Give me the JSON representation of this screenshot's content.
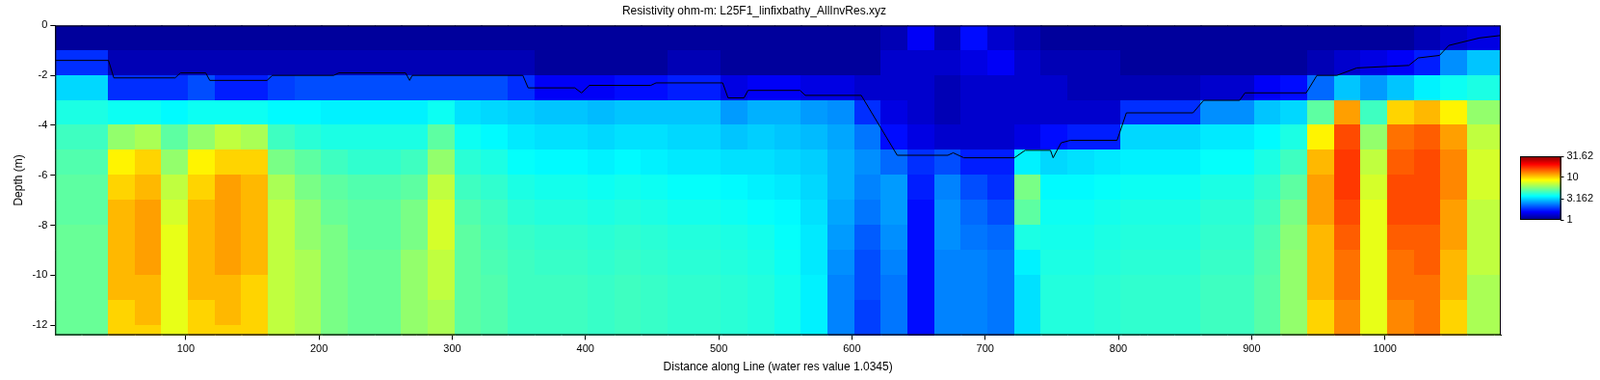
{
  "chart_data": {
    "type": "heatmap",
    "title": "Resistivity ohm-m: L25F1_linfixbathy_AllInvRes.xyz",
    "x_label": "Distance along Line (water res value 1.0345)",
    "y_label": "Depth (m)",
    "xlim": [
      2,
      1087
    ],
    "xticks": [
      100,
      200,
      300,
      400,
      500,
      600,
      700,
      800,
      900,
      1000
    ],
    "ylim": [
      -12.4,
      0
    ],
    "yticks": [
      -12,
      -10,
      -8,
      -6,
      -4,
      -2,
      0
    ],
    "grid": false,
    "x": [
      12,
      32,
      52,
      72,
      92,
      112,
      132,
      152,
      172,
      192,
      212,
      232,
      252,
      272,
      292,
      312,
      332,
      352,
      372,
      392,
      412,
      432,
      452,
      472,
      492,
      512,
      532,
      552,
      572,
      592,
      612,
      632,
      652,
      672,
      692,
      712,
      732,
      752,
      772,
      792,
      812,
      832,
      852,
      872,
      892,
      912,
      932,
      952,
      972,
      992,
      1012,
      1032,
      1052,
      1072,
      1092
    ],
    "y": [
      -0.5,
      -1.5,
      -2.5,
      -3.5,
      -4.5,
      -5.5,
      -6.5,
      -7.5,
      -8.5,
      -9.5,
      -10.5,
      -11.5,
      -12.5
    ],
    "cells": [
      [
        1.1,
        1.8,
        3.2,
        4.0,
        4.5,
        4.8,
        5.0,
        5.0,
        5.2,
        5.2,
        5.2,
        5.2,
        5.2
      ],
      [
        1.1,
        1.8,
        3.2,
        4.0,
        4.5,
        4.8,
        5.0,
        5.0,
        5.2,
        5.2,
        5.2,
        5.2,
        5.2
      ],
      [
        1.1,
        1.2,
        1.8,
        3.8,
        6,
        9,
        10,
        11,
        11,
        11,
        11,
        10,
        10
      ],
      [
        1.1,
        1.2,
        1.8,
        3.8,
        6.5,
        10,
        11,
        12,
        12,
        12,
        11,
        11,
        10
      ],
      [
        1.1,
        1.2,
        1.8,
        3.6,
        5,
        6,
        7,
        7.5,
        8,
        8,
        8,
        8,
        8
      ],
      [
        1.1,
        1.2,
        2.0,
        3.8,
        6,
        9,
        10,
        11,
        11,
        11,
        11,
        10,
        10
      ],
      [
        1.1,
        1.2,
        1.7,
        3.8,
        7,
        10,
        12,
        12,
        12,
        12,
        11,
        11,
        10
      ],
      [
        1.1,
        1.2,
        1.7,
        3.8,
        6.5,
        10,
        11,
        11,
        11,
        11,
        10,
        10,
        10
      ],
      [
        1.1,
        1.2,
        1.9,
        3.6,
        4.5,
        5.5,
        6.5,
        7,
        7,
        7,
        7,
        7,
        7
      ],
      [
        1.1,
        1.2,
        2.0,
        3.6,
        4.2,
        5,
        5.5,
        6,
        6,
        6.5,
        6.5,
        6.5,
        6.5
      ],
      [
        1.1,
        1.2,
        2.0,
        3.5,
        4,
        4.5,
        5,
        5.2,
        5.5,
        5.5,
        5.5,
        5.5,
        5.5
      ],
      [
        1.1,
        1.2,
        2.0,
        3.5,
        4,
        4.3,
        4.8,
        5,
        5,
        5.2,
        5.2,
        5.2,
        5.2
      ],
      [
        1.1,
        1.2,
        2.0,
        3.5,
        4,
        4.3,
        4.8,
        5,
        5,
        5.2,
        5.2,
        5.2,
        5.2
      ],
      [
        1.1,
        1.2,
        2.0,
        3.5,
        4,
        4.5,
        5,
        5.5,
        5.5,
        6,
        6,
        6,
        6
      ],
      [
        1.1,
        1.2,
        2.0,
        3.8,
        5,
        6,
        7,
        7.5,
        7.5,
        7,
        7,
        6.5,
        6.5
      ],
      [
        1.1,
        1.2,
        2.0,
        3.3,
        3.8,
        4.2,
        4.5,
        4.8,
        5,
        5,
        5,
        5,
        5
      ],
      [
        1.1,
        1.2,
        2.0,
        3.2,
        3.6,
        4,
        4.3,
        4.5,
        4.6,
        4.7,
        4.8,
        4.8,
        4.8
      ],
      [
        1.1,
        1.2,
        1.8,
        3.1,
        3.4,
        3.7,
        4,
        4.2,
        4.4,
        4.5,
        4.5,
        4.5,
        4.5
      ],
      [
        1.1,
        1.1,
        1.5,
        3.0,
        3.3,
        3.6,
        3.9,
        4.1,
        4.3,
        4.4,
        4.5,
        4.5,
        4.5
      ],
      [
        1.1,
        1.1,
        1.5,
        3.0,
        3.3,
        3.6,
        3.9,
        4.1,
        4.3,
        4.4,
        4.5,
        4.5,
        4.5
      ],
      [
        1.1,
        1.1,
        1.5,
        2.9,
        3.2,
        3.5,
        3.8,
        4.0,
        4.2,
        4.3,
        4.4,
        4.4,
        4.4
      ],
      [
        1.1,
        1.1,
        1.6,
        3.0,
        3.3,
        3.6,
        3.9,
        4.1,
        4.3,
        4.4,
        4.5,
        4.5,
        4.5
      ],
      [
        1.1,
        1.1,
        1.6,
        3.0,
        3.3,
        3.5,
        3.8,
        4,
        4.2,
        4.3,
        4.4,
        4.4,
        4.4
      ],
      [
        1.1,
        1.2,
        1.7,
        3.0,
        3.2,
        3.4,
        3.7,
        3.9,
        4.1,
        4.2,
        4.3,
        4.3,
        4.3
      ],
      [
        1.1,
        1.2,
        1.7,
        3.0,
        3.2,
        3.4,
        3.7,
        3.9,
        4.1,
        4.2,
        4.3,
        4.3,
        4.3
      ],
      [
        1.1,
        1.1,
        1.4,
        2.6,
        3.0,
        3.3,
        3.6,
        3.8,
        4,
        4.1,
        4.2,
        4.2,
        4.2
      ],
      [
        1.1,
        1.1,
        1.5,
        2.8,
        3.1,
        3.3,
        3.5,
        3.7,
        3.9,
        4,
        4.1,
        4.1,
        4.1
      ],
      [
        1.1,
        1.1,
        1.5,
        2.8,
        3.0,
        3.2,
        3.4,
        3.6,
        3.7,
        3.8,
        3.9,
        3.9,
        3.9
      ],
      [
        1.1,
        1.1,
        1.4,
        2.6,
        2.9,
        3.1,
        3.2,
        3.3,
        3.4,
        3.4,
        3.5,
        3.5,
        3.5
      ],
      [
        1.1,
        1.1,
        1.4,
        2.5,
        2.7,
        2.8,
        2.8,
        2.7,
        2.6,
        2.5,
        2.4,
        2.4,
        2.4
      ],
      [
        1.1,
        1.1,
        1.3,
        1.8,
        2.3,
        2.5,
        2.4,
        2.3,
        2.1,
        2.0,
        2.0,
        1.9,
        1.9
      ],
      [
        1.2,
        1.3,
        1.3,
        1.4,
        1.6,
        2.2,
        2.6,
        2.6,
        2.5,
        2.4,
        2.3,
        2.3,
        2.3
      ],
      [
        1.5,
        1.3,
        1.3,
        1.3,
        1.4,
        1.8,
        1.7,
        1.6,
        1.6,
        1.6,
        1.6,
        1.6,
        1.6
      ],
      [
        1.2,
        1.3,
        1.2,
        1.2,
        1.3,
        2.0,
        2.4,
        2.5,
        2.5,
        2.4,
        2.4,
        2.4,
        2.4
      ],
      [
        1.6,
        1.4,
        1.3,
        1.3,
        1.3,
        1.7,
        2.0,
        2.2,
        2.3,
        2.4,
        2.4,
        2.4,
        2.4
      ],
      [
        1.3,
        1.5,
        1.3,
        1.3,
        1.3,
        1.7,
        1.8,
        2.0,
        2.2,
        2.3,
        2.3,
        2.3,
        2.3
      ],
      [
        1.2,
        1.3,
        1.3,
        1.3,
        1.4,
        3.5,
        5.5,
        5,
        4,
        3.5,
        3.3,
        3.3,
        3.3
      ],
      [
        1.1,
        1.2,
        1.3,
        1.3,
        1.6,
        3.2,
        3.6,
        3.8,
        3.9,
        4,
        4.1,
        4.1,
        4.1
      ],
      [
        1.1,
        1.2,
        1.2,
        1.3,
        1.7,
        3.3,
        3.6,
        3.8,
        3.9,
        4,
        4.1,
        4.1,
        4.1
      ],
      [
        1.1,
        1.2,
        1.2,
        1.3,
        1.7,
        3.4,
        3.7,
        3.9,
        4,
        4.1,
        4.2,
        4.2,
        4.2
      ],
      [
        1.1,
        1.1,
        1.2,
        1.8,
        3.2,
        3.5,
        3.8,
        4,
        4.1,
        4.2,
        4.3,
        4.3,
        4.3
      ],
      [
        1.1,
        1.1,
        1.2,
        1.8,
        3.2,
        3.5,
        3.8,
        4,
        4.1,
        4.2,
        4.3,
        4.3,
        4.3
      ],
      [
        1.1,
        1.1,
        1.2,
        1.8,
        3.2,
        3.5,
        3.8,
        4,
        4.1,
        4.2,
        4.3,
        4.3,
        4.3
      ],
      [
        1.1,
        1.1,
        1.3,
        2.5,
        3.4,
        3.7,
        4,
        4.2,
        4.3,
        4.4,
        4.5,
        4.5,
        4.5
      ],
      [
        1.1,
        1.1,
        1.3,
        2.5,
        3.4,
        3.7,
        4,
        4.2,
        4.3,
        4.4,
        4.5,
        4.5,
        4.5
      ],
      [
        1.1,
        1.1,
        1.5,
        3.0,
        3.6,
        4,
        4.3,
        4.5,
        4.7,
        4.8,
        4.9,
        4.9,
        4.9
      ],
      [
        1.1,
        1.1,
        1.6,
        3.2,
        4,
        4.5,
        5,
        5.5,
        5.8,
        6,
        6,
        6,
        6
      ],
      [
        1.1,
        1.2,
        2.2,
        5,
        9,
        11,
        12,
        12,
        11,
        11,
        11,
        10,
        10
      ],
      [
        1.1,
        1.3,
        3.0,
        12,
        16,
        17,
        17,
        16,
        15,
        14,
        14,
        13,
        13
      ],
      [
        1.1,
        1.4,
        2.6,
        4.5,
        6,
        7,
        7.5,
        8,
        8,
        8,
        8,
        8,
        8
      ],
      [
        1.1,
        1.5,
        3.0,
        10,
        14,
        15,
        16,
        16,
        15,
        14,
        14,
        13,
        13
      ],
      [
        1.2,
        1.7,
        3.5,
        11,
        15,
        16,
        16,
        16,
        15,
        15,
        14,
        14,
        14
      ],
      [
        1.3,
        2.5,
        3.8,
        9,
        12,
        13,
        13,
        12,
        12,
        11,
        11,
        10,
        10
      ],
      [
        1.4,
        3,
        4,
        6,
        7,
        7.5,
        7.5,
        7,
        7,
        7,
        6.5,
        6.5,
        6.5
      ],
      [
        1.4,
        3,
        4,
        6,
        7,
        7.5,
        7.5,
        7,
        7,
        7,
        6.5,
        6.5,
        6.5
      ]
    ],
    "colorbar": {
      "range": [
        1,
        31.62
      ],
      "ticks": [
        1,
        3.162,
        10,
        31.62
      ]
    },
    "line": {
      "color": "#000000",
      "x": [
        2,
        42,
        46,
        92,
        96,
        115,
        118,
        161,
        165,
        211,
        215,
        265,
        268,
        270,
        353,
        357,
        392,
        397,
        403,
        449,
        453,
        503,
        507,
        519,
        522,
        561,
        565,
        607,
        634,
        672,
        676,
        684,
        722,
        730,
        749,
        751,
        757,
        764,
        799,
        806,
        856,
        864,
        891,
        895,
        941,
        949,
        964,
        979,
        1018,
        1025,
        1041,
        1048,
        1071,
        1087
      ],
      "y": [
        -1.4,
        -1.4,
        -2.1,
        -2.1,
        -1.9,
        -1.9,
        -2.2,
        -2.2,
        -2,
        -2,
        -1.9,
        -1.9,
        -2.2,
        -2,
        -2,
        -2.5,
        -2.5,
        -2.7,
        -2.4,
        -2.4,
        -2.3,
        -2.3,
        -2.9,
        -2.9,
        -2.6,
        -2.6,
        -2.8,
        -2.8,
        -5.2,
        -5.2,
        -5.1,
        -5.3,
        -5.3,
        -5,
        -5,
        -5.3,
        -4.7,
        -4.6,
        -4.6,
        -3.5,
        -3.5,
        -3,
        -3,
        -2.7,
        -2.7,
        -2,
        -2,
        -1.7,
        -1.6,
        -1.3,
        -1.2,
        -0.8,
        -0.5,
        -0.4
      ]
    }
  }
}
